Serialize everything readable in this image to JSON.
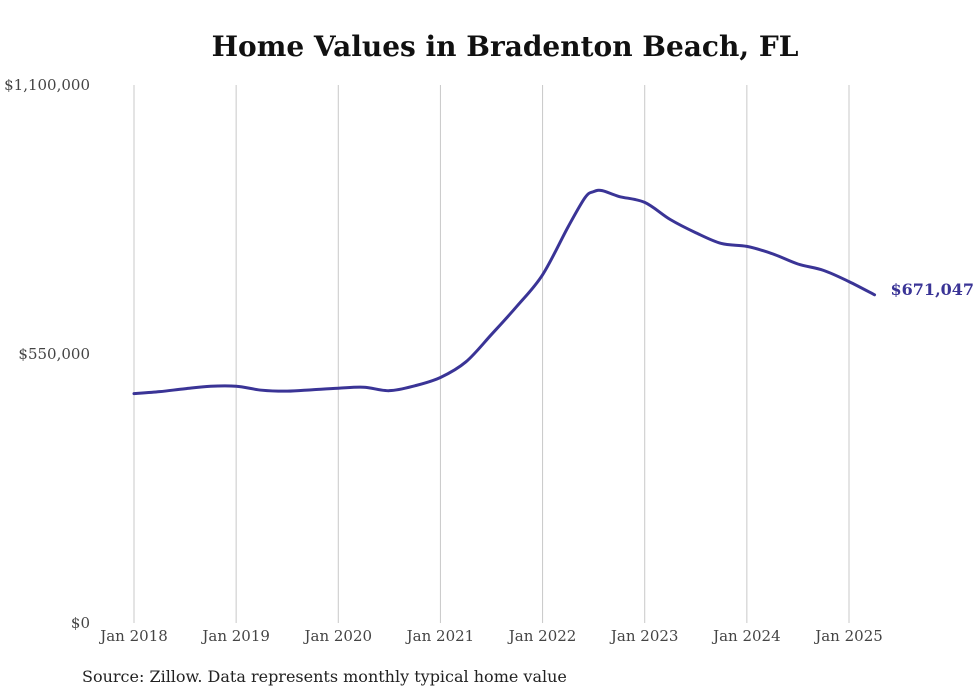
{
  "chart_data": {
    "type": "line",
    "title": "Home Values in Bradenton Beach, FL",
    "source": "Source: Zillow. Data represents monthly typical home value",
    "xlabel": "",
    "ylabel": "",
    "ylim": [
      0,
      1100000
    ],
    "xlim": [
      "2018-01",
      "2025-04"
    ],
    "y_ticks": [
      {
        "value": 0,
        "label": "$0"
      },
      {
        "value": 550000,
        "label": "$550,000"
      },
      {
        "value": 1100000,
        "label": "$1,100,000"
      }
    ],
    "x_ticks": [
      {
        "date": "2018-01",
        "label": "Jan 2018"
      },
      {
        "date": "2019-01",
        "label": "Jan 2019"
      },
      {
        "date": "2020-01",
        "label": "Jan 2020"
      },
      {
        "date": "2021-01",
        "label": "Jan 2021"
      },
      {
        "date": "2022-01",
        "label": "Jan 2022"
      },
      {
        "date": "2023-01",
        "label": "Jan 2023"
      },
      {
        "date": "2024-01",
        "label": "Jan 2024"
      },
      {
        "date": "2025-01",
        "label": "Jan 2025"
      }
    ],
    "grid": {
      "vertical": true,
      "horizontal": false
    },
    "line_color": "#3a3496",
    "end_label": "$671,047",
    "series": [
      {
        "values": [
          {
            "x": "2018-01",
            "y": 469000
          },
          {
            "x": "2018-04",
            "y": 473000
          },
          {
            "x": "2018-07",
            "y": 479000
          },
          {
            "x": "2018-10",
            "y": 484000
          },
          {
            "x": "2019-01",
            "y": 484000
          },
          {
            "x": "2019-04",
            "y": 476000
          },
          {
            "x": "2019-07",
            "y": 474000
          },
          {
            "x": "2019-10",
            "y": 477000
          },
          {
            "x": "2020-01",
            "y": 480000
          },
          {
            "x": "2020-04",
            "y": 482000
          },
          {
            "x": "2020-07",
            "y": 475000
          },
          {
            "x": "2020-10",
            "y": 485000
          },
          {
            "x": "2021-01",
            "y": 502000
          },
          {
            "x": "2021-04",
            "y": 534000
          },
          {
            "x": "2021-07",
            "y": 590000
          },
          {
            "x": "2021-10",
            "y": 648000
          },
          {
            "x": "2022-01",
            "y": 712000
          },
          {
            "x": "2022-04",
            "y": 810000
          },
          {
            "x": "2022-06",
            "y": 870000
          },
          {
            "x": "2022-07",
            "y": 882000
          },
          {
            "x": "2022-08",
            "y": 884000
          },
          {
            "x": "2022-10",
            "y": 872000
          },
          {
            "x": "2023-01",
            "y": 860000
          },
          {
            "x": "2023-04",
            "y": 825000
          },
          {
            "x": "2023-07",
            "y": 798000
          },
          {
            "x": "2023-10",
            "y": 776000
          },
          {
            "x": "2024-01",
            "y": 770000
          },
          {
            "x": "2024-04",
            "y": 755000
          },
          {
            "x": "2024-07",
            "y": 734000
          },
          {
            "x": "2024-10",
            "y": 721000
          },
          {
            "x": "2025-01",
            "y": 698000
          },
          {
            "x": "2025-04",
            "y": 671047
          }
        ]
      }
    ]
  }
}
